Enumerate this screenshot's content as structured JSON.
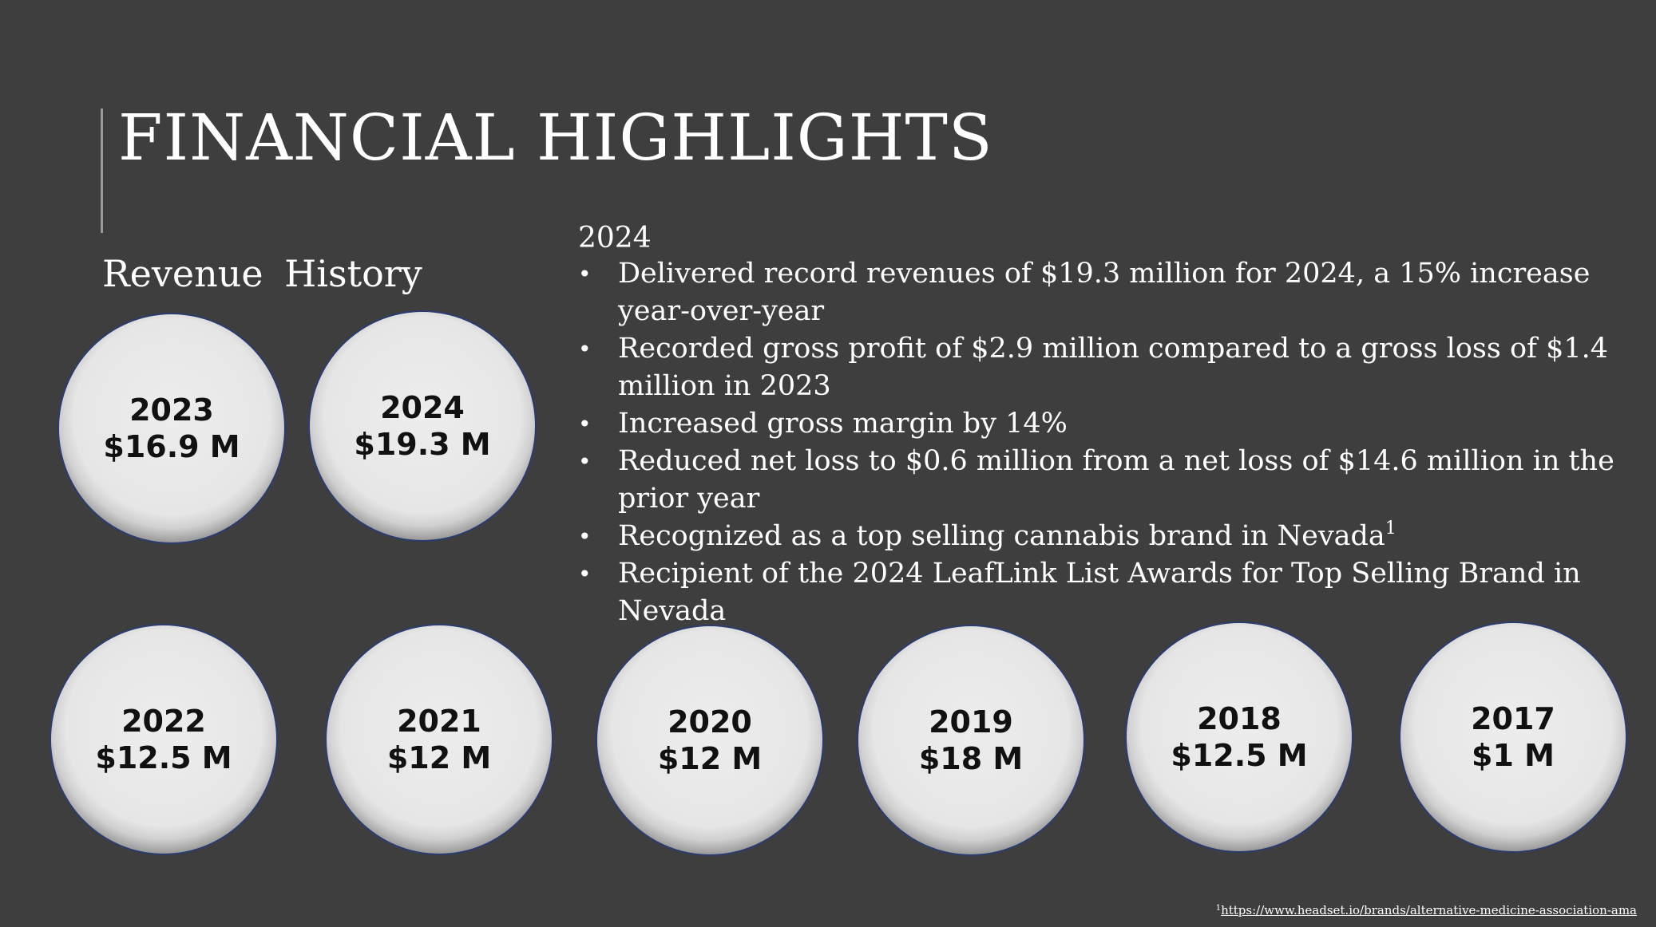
{
  "title": "FINANCIAL HIGHLIGHTS",
  "revenue_heading": "Revenue  History",
  "year_label": "2024",
  "bullets": [
    {
      "text": "Delivered record revenues of $19.3 million for 2024, a 15% increase year-over-year"
    },
    {
      "text": "Recorded gross profit of $2.9 million compared to a gross loss of $1.4 million in 2023"
    },
    {
      "text": "Increased gross margin by 14%"
    },
    {
      "text": "Reduced net loss to $0.6 million from a net loss of $14.6 million in the prior year"
    },
    {
      "text": "Recognized as a top selling cannabis brand in Nevada",
      "sup": "1"
    },
    {
      "text": "Recipient of the 2024 LeafLink List Awards for Top Selling Brand in Nevada"
    }
  ],
  "bullet_char": "•",
  "revenue_history": [
    {
      "year": "2023",
      "amount": "$16.9 M"
    },
    {
      "year": "2024",
      "amount": "$19.3 M"
    },
    {
      "year": "2022",
      "amount": "$12.5 M"
    },
    {
      "year": "2021",
      "amount": "$12 M"
    },
    {
      "year": "2020",
      "amount": "$12 M"
    },
    {
      "year": "2019",
      "amount": "$18 M"
    },
    {
      "year": "2018",
      "amount": "$12.5 M"
    },
    {
      "year": "2017",
      "amount": "$1 M"
    }
  ],
  "footnote": {
    "marker": "1",
    "link_text": "https://www.headset.io/brands/alternative-medicine-association-ama"
  },
  "colors": {
    "background": "#3e3e3f",
    "text": "#ffffff",
    "circle_fill": "#e6e6e6",
    "circle_text": "#111111"
  }
}
